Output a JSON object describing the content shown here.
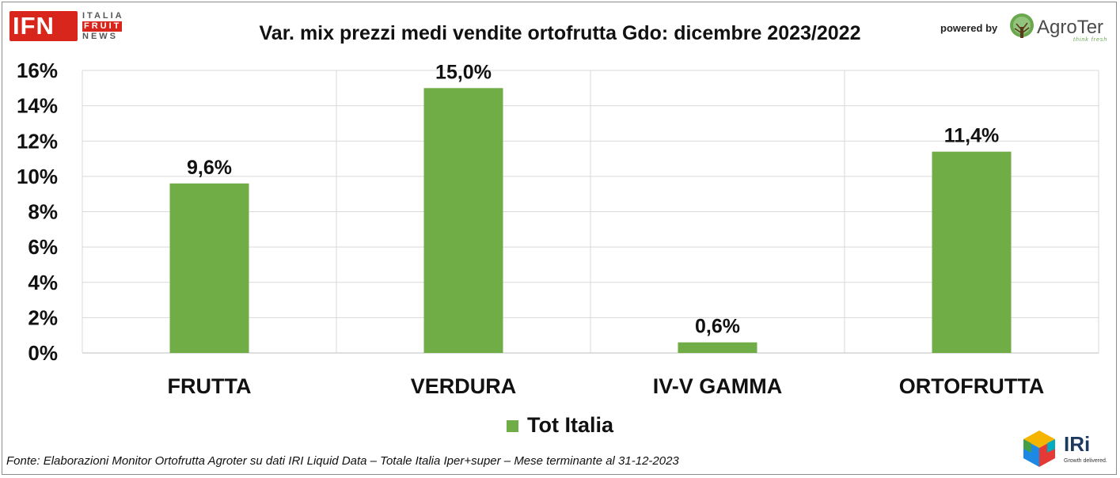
{
  "header": {
    "logo_ifn": {
      "mark": "IFN",
      "line1": "ITALIA",
      "line2": "FRUIT",
      "line3": "NEWS"
    },
    "powered_by": "powered by",
    "agroter": {
      "name": "AgroTer",
      "tagline": "think fresh",
      "icon": "tree-icon"
    }
  },
  "footer": {
    "source": "Fonte: Elaborazioni Monitor Ortofrutta Agroter su dati IRI Liquid Data – Totale Italia Iper+super – Mese terminante al 31-12-2023",
    "iri": {
      "name": "IRi",
      "tagline": "Growth delivered.",
      "icon": "iri-cube-icon"
    }
  },
  "colors": {
    "bar": "#70ad47",
    "grid": "#d9d9d9"
  },
  "chart_data": {
    "type": "bar",
    "title": "Var. mix prezzi medi vendite ortofrutta Gdo: dicembre 2023/2022",
    "categories": [
      "FRUTTA",
      "VERDURA",
      "IV-V GAMMA",
      "ORTOFRUTTA"
    ],
    "series": [
      {
        "name": "Tot Italia",
        "values": [
          9.6,
          15.0,
          0.6,
          11.4
        ],
        "color": "#70ad47"
      }
    ],
    "data_labels": [
      "9,6%",
      "15,0%",
      "0,6%",
      "11,4%"
    ],
    "y_ticks": [
      "0%",
      "2%",
      "4%",
      "6%",
      "8%",
      "10%",
      "12%",
      "14%",
      "16%"
    ],
    "ylim": [
      0,
      16
    ],
    "y_unit": "%",
    "grid": true,
    "legend_position": "bottom"
  }
}
